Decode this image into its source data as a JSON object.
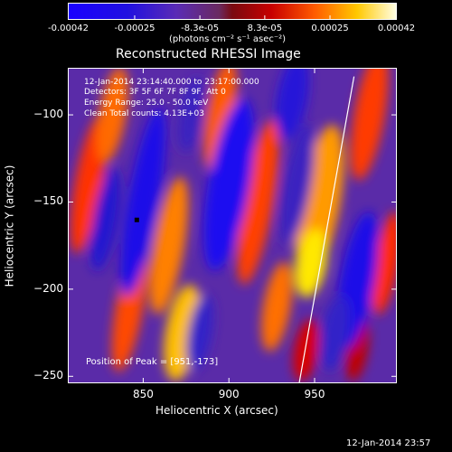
{
  "colorbar": {
    "tick_labels": [
      "-0.00042",
      "-0.00025",
      "-8.3e-05",
      "8.3e-05",
      "0.00025",
      "0.00042"
    ],
    "unit_label": "(photons cm⁻² s⁻¹ asec⁻²)",
    "range": [
      -0.00042,
      0.00042
    ]
  },
  "chart_data": {
    "type": "heatmap",
    "title": "Reconstructed RHESSI Image",
    "xlabel": "Heliocentric X (arcsec)",
    "ylabel": "Heliocentric Y (arcsec)",
    "xlim": [
      806,
      998
    ],
    "ylim": [
      -254,
      -73
    ],
    "x_ticks": [
      850,
      900,
      950
    ],
    "y_ticks": [
      -100,
      -150,
      -200,
      -250
    ],
    "annotations": [
      "12-Jan-2014 23:14:40.000 to 23:17:00.000",
      "Detectors: 3F 5F 6F 7F 8F 9F, Att 0",
      "Energy Range: 25.0 - 50.0 keV",
      "Clean    Total counts: 4.13E+03"
    ],
    "peak_label": "Position of Peak = [951,-173]",
    "peak": [
      951,
      -173
    ],
    "limb_line": [
      [
        941,
        -254
      ],
      [
        973,
        -78
      ]
    ],
    "pattern": "alternating diagonal positive (red-yellow) and negative (blue) lobes"
  },
  "footer": {
    "timestamp": "12-Jan-2014 23:57"
  }
}
